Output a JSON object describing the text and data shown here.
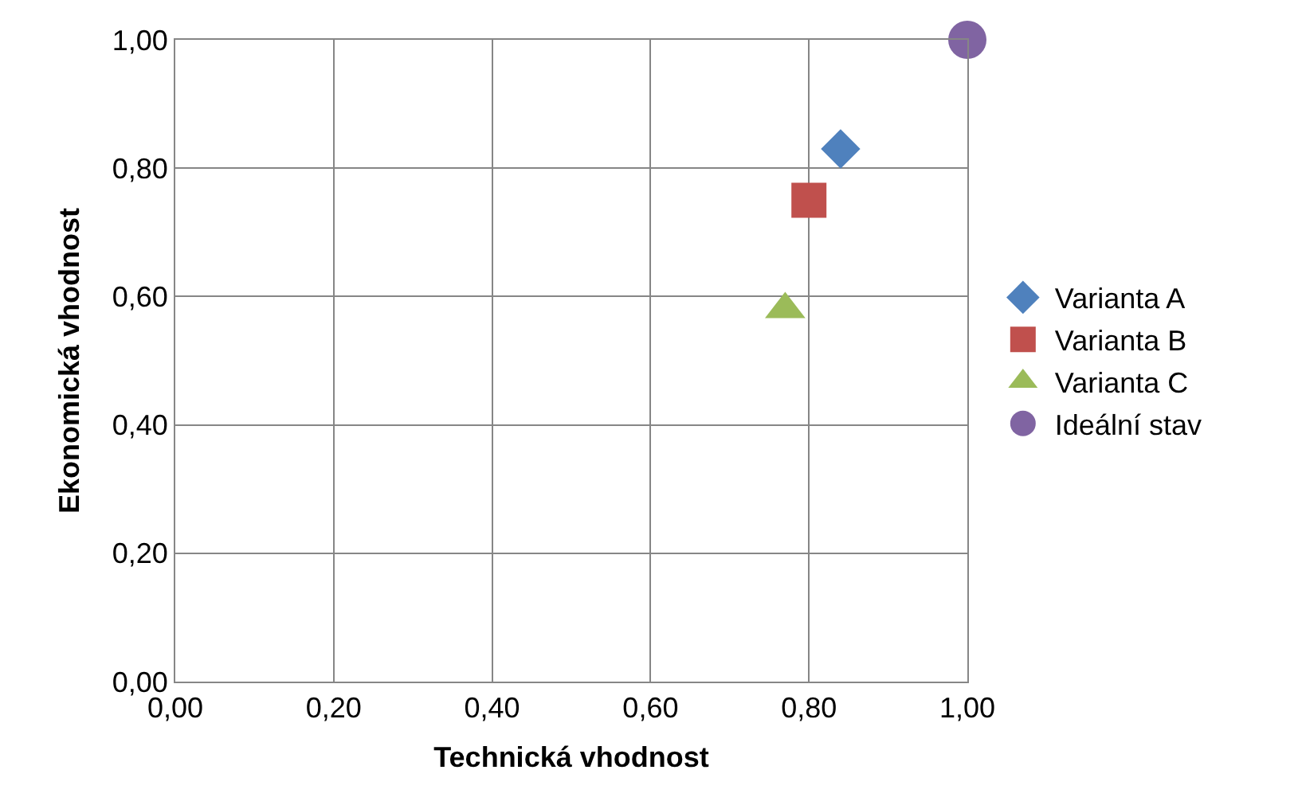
{
  "chart_data": {
    "type": "scatter",
    "xlabel": "Technická vhodnost",
    "ylabel": "Ekonomická vhodnost",
    "series": [
      {
        "name": "Varianta A",
        "color": "#4f81bd",
        "marker": "diamond",
        "x": [
          0.84
        ],
        "values": [
          0.83
        ]
      },
      {
        "name": "Varianta B",
        "color": "#c0504d",
        "marker": "square",
        "x": [
          0.8
        ],
        "values": [
          0.75
        ]
      },
      {
        "name": "Varianta C",
        "color": "#9bbb59",
        "marker": "triangle",
        "x": [
          0.77
        ],
        "values": [
          0.58
        ]
      },
      {
        "name": "Ideální stav",
        "color": "#8064a2",
        "marker": "circle",
        "x": [
          1.0
        ],
        "values": [
          1.0
        ]
      }
    ],
    "xlim": [
      0,
      1
    ],
    "ylim": [
      0,
      1
    ],
    "xticks": [
      {
        "value": 0,
        "label": "0,00"
      },
      {
        "value": 0.2,
        "label": "0,20"
      },
      {
        "value": 0.4,
        "label": "0,40"
      },
      {
        "value": 0.6,
        "label": "0,60"
      },
      {
        "value": 0.8,
        "label": "0,80"
      },
      {
        "value": 1,
        "label": "1,00"
      }
    ],
    "yticks": [
      {
        "value": 0,
        "label": "0,00"
      },
      {
        "value": 0.2,
        "label": "0,20"
      },
      {
        "value": 0.4,
        "label": "0,40"
      },
      {
        "value": 0.6,
        "label": "0,60"
      },
      {
        "value": 0.8,
        "label": "0,80"
      },
      {
        "value": 1,
        "label": "1,00"
      }
    ],
    "grid": true,
    "legend": "right"
  }
}
